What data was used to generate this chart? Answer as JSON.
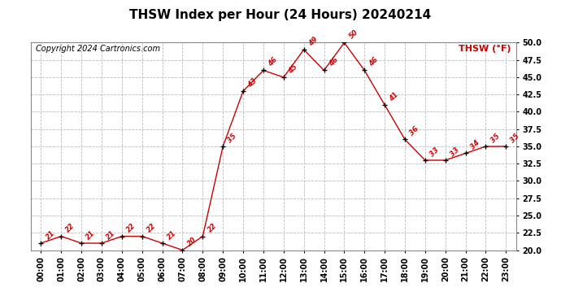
{
  "title": "THSW Index per Hour (24 Hours) 20240214",
  "copyright": "Copyright 2024 Cartronics.com",
  "legend_label": "THSW (°F)",
  "x_labels": [
    "00:00",
    "01:00",
    "02:00",
    "03:00",
    "04:00",
    "05:00",
    "06:00",
    "07:00",
    "08:00",
    "09:00",
    "10:00",
    "11:00",
    "12:00",
    "13:00",
    "14:00",
    "15:00",
    "16:00",
    "17:00",
    "18:00",
    "19:00",
    "20:00",
    "21:00",
    "22:00",
    "23:00"
  ],
  "hours": [
    0,
    1,
    2,
    3,
    4,
    5,
    6,
    7,
    8,
    9,
    10,
    11,
    12,
    13,
    14,
    15,
    16,
    17,
    18,
    19,
    20,
    21,
    22,
    23
  ],
  "values": [
    21,
    22,
    21,
    21,
    22,
    22,
    21,
    20,
    22,
    35,
    43,
    46,
    45,
    49,
    46,
    50,
    46,
    41,
    36,
    33,
    33,
    34,
    35,
    35
  ],
  "ylim_min": 20.0,
  "ylim_max": 50.0,
  "yticks": [
    20.0,
    22.5,
    25.0,
    27.5,
    30.0,
    32.5,
    35.0,
    37.5,
    40.0,
    42.5,
    45.0,
    47.5,
    50.0
  ],
  "line_color": "#cc0000",
  "marker_color": "#000000",
  "label_color": "#cc0000",
  "legend_color": "#cc0000",
  "title_fontsize": 11,
  "copyright_fontsize": 7,
  "legend_fontsize": 8,
  "tick_fontsize": 7,
  "annotation_fontsize": 6,
  "background_color": "#ffffff",
  "grid_color": "#bbbbbb"
}
